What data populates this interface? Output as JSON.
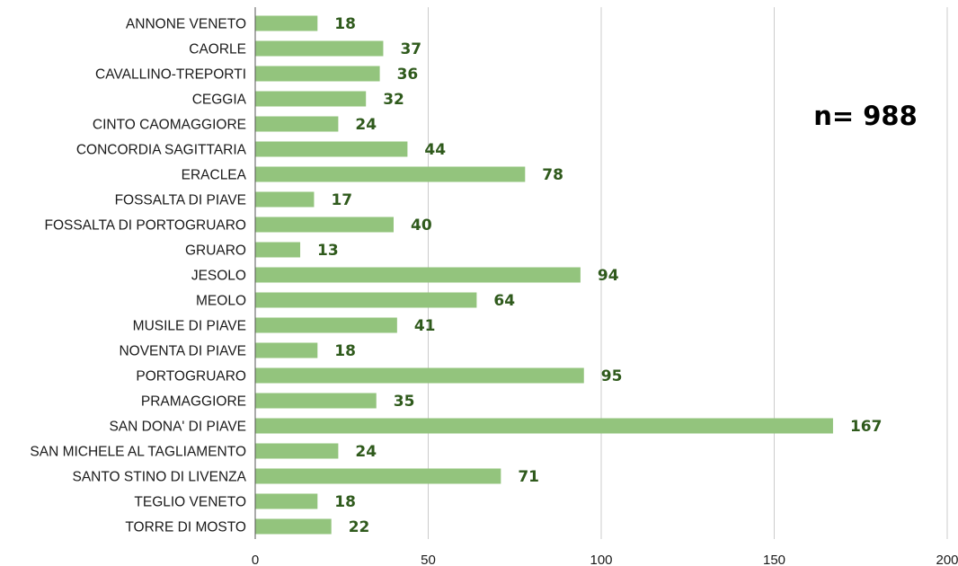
{
  "chart_data": {
    "type": "bar",
    "orientation": "horizontal",
    "categories": [
      "ANNONE VENETO",
      "CAORLE",
      "CAVALLINO-TREPORTI",
      "CEGGIA",
      "CINTO CAOMAGGIORE",
      "CONCORDIA SAGITTARIA",
      "ERACLEA",
      "FOSSALTA DI PIAVE",
      "FOSSALTA DI PORTOGRUARO",
      "GRUARO",
      "JESOLO",
      "MEOLO",
      "MUSILE DI PIAVE",
      "NOVENTA DI PIAVE",
      "PORTOGRUARO",
      "PRAMAGGIORE",
      "SAN DONA' DI PIAVE",
      "SAN MICHELE AL TAGLIAMENTO",
      "SANTO STINO DI LIVENZA",
      "TEGLIO VENETO",
      "TORRE DI MOSTO"
    ],
    "values": [
      18,
      37,
      36,
      32,
      24,
      44,
      78,
      17,
      40,
      13,
      94,
      64,
      41,
      18,
      95,
      35,
      167,
      24,
      71,
      18,
      22
    ],
    "xlim": [
      0,
      200
    ],
    "xticks": [
      0,
      50,
      100,
      150,
      200
    ],
    "grid": "vertical",
    "bar_color": "#93c47d",
    "label_color": "#2f5a1c",
    "annotation": "n= 988"
  }
}
